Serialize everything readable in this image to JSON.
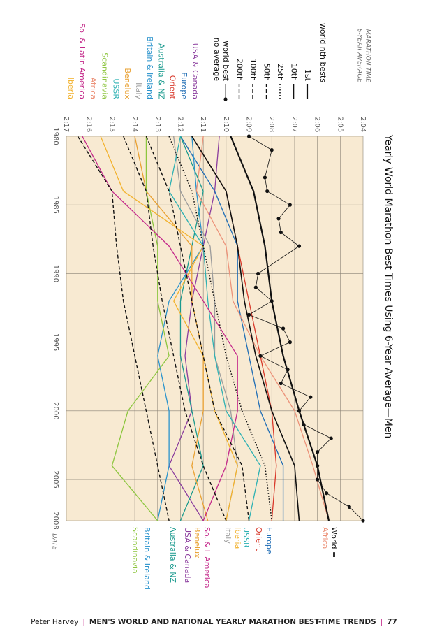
{
  "chart_data": {
    "type": "line",
    "title": "Yearly World Marathon Best Times Using 6-Year Average—Men",
    "y_label": [
      "MARATHON TIME",
      "6-YEAR AVERAGE"
    ],
    "x_label": "DATE",
    "xlim": [
      1980,
      2008
    ],
    "xticks": [
      1980,
      1985,
      1990,
      1995,
      2000,
      2005,
      2008
    ],
    "ylim": [
      124,
      137
    ],
    "yticks": [
      {
        "value": 124,
        "label": "2:04"
      },
      {
        "value": 125,
        "label": "2:05"
      },
      {
        "value": 126,
        "label": "2:06"
      },
      {
        "value": 127,
        "label": "2:07"
      },
      {
        "value": 128,
        "label": "2:08"
      },
      {
        "value": 129,
        "label": "2:09"
      },
      {
        "value": 130,
        "label": "2:10"
      },
      {
        "value": 131,
        "label": "2:11"
      },
      {
        "value": 132,
        "label": "2:12"
      },
      {
        "value": 133,
        "label": "2:13"
      },
      {
        "value": 134,
        "label": "2:14"
      },
      {
        "value": 135,
        "label": "2:15"
      },
      {
        "value": 136,
        "label": "2:16"
      },
      {
        "value": 137,
        "label": "2:17"
      }
    ],
    "grid": true,
    "background": "#f8ead2",
    "legend_title": "world nth bests",
    "x": [
      1980,
      1984,
      1988,
      1992,
      1996,
      2000,
      2004,
      2008
    ],
    "series": [
      {
        "name": "1st",
        "color": "#111111",
        "dash": "solid",
        "width": 2.2,
        "values": [
          129.8,
          128.8,
          128.3,
          128.0,
          127.5,
          126.8,
          126.0,
          125.5
        ]
      },
      {
        "name": "10th",
        "color": "#111111",
        "dash": "solid",
        "width": 1.6,
        "values": [
          131.5,
          130.0,
          129.5,
          129.2,
          128.7,
          128.0,
          127.0,
          126.8
        ]
      },
      {
        "name": "25th",
        "color": "#111111",
        "dash": "dotted",
        "width": 1.6,
        "values": [
          132.5,
          131.5,
          131.0,
          130.5,
          130.0,
          129.3,
          128.3,
          128.0
        ]
      },
      {
        "name": "50th",
        "color": "#111111",
        "dash": "dashed",
        "width": 1.4,
        "values": [
          133.5,
          132.5,
          132.0,
          131.5,
          131.0,
          130.5,
          129.3,
          129.0
        ]
      },
      {
        "name": "100th",
        "color": "#111111",
        "dash": "dashed",
        "width": 1.4,
        "values": [
          134.5,
          133.5,
          133.2,
          132.8,
          132.3,
          131.8,
          131.0,
          130.0
        ]
      },
      {
        "name": "200th",
        "color": "#111111",
        "dash": "dashed",
        "width": 1.4,
        "values": [
          136.5,
          135.0,
          134.8,
          134.5,
          134.0,
          133.5,
          133.0,
          132.5
        ]
      },
      {
        "name": "world best",
        "legend_note": "no average",
        "color": "#111111",
        "dash": "solid",
        "width": 0.8,
        "marker": true,
        "x": [
          1980,
          1981,
          1983,
          1984,
          1985,
          1986,
          1987,
          1988,
          1990,
          1991,
          1992,
          1993,
          1994,
          1995,
          1996,
          1997,
          1998,
          1999,
          2000,
          2001,
          2002,
          2003,
          2004,
          2005,
          2006,
          2007,
          2008
        ],
        "values": [
          129.0,
          128.0,
          128.3,
          128.2,
          127.2,
          127.7,
          127.6,
          126.8,
          128.6,
          128.7,
          128.0,
          129.0,
          127.5,
          127.2,
          128.5,
          127.3,
          127.6,
          126.3,
          126.8,
          126.6,
          125.4,
          126.0,
          126.0,
          126.0,
          125.6,
          124.6,
          124.0
        ]
      }
    ],
    "regions": [
      {
        "name": "USA & Canada",
        "color": "#8b3d9e",
        "values": [
          130.3,
          130.5,
          131.0,
          131.5,
          131.8,
          131.5,
          132.5,
          131.0
        ]
      },
      {
        "name": "Europe",
        "color": "#1f6db5",
        "values": [
          132.0,
          130.5,
          129.5,
          129.5,
          129.0,
          128.5,
          127.5,
          127.5
        ]
      },
      {
        "name": "Orient",
        "color": "#d8382a",
        "values": [
          131.5,
          130.0,
          129.5,
          129.0,
          128.5,
          128.0,
          127.8,
          128.0
        ]
      },
      {
        "name": "Australia & NZ",
        "color": "#1a9a8e",
        "values": [
          132.0,
          131.0,
          131.5,
          132.0,
          132.0,
          131.5,
          131.0,
          132.0
        ]
      },
      {
        "name": "Britain & Ireland",
        "color": "#2a93cc",
        "values": [
          131.5,
          131.3,
          131.0,
          132.5,
          133.0,
          132.5,
          132.5,
          133.0
        ]
      },
      {
        "name": "Italy",
        "color": "#9c9c9c",
        "values": [
          132.3,
          132.0,
          130.7,
          130.5,
          130.5,
          129.8,
          129.5,
          130.0
        ]
      },
      {
        "name": "Benelux",
        "color": "#e9a030",
        "values": [
          134.0,
          133.5,
          131.5,
          131.5,
          131.0,
          131.0,
          131.5,
          130.8
        ]
      },
      {
        "name": "USSR",
        "color": "#2db1b3",
        "values": [
          132.0,
          132.5,
          131.0,
          130.8,
          130.5,
          130.0,
          128.5,
          129.0
        ]
      },
      {
        "name": "Scandinavia",
        "color": "#8dc63f",
        "values": [
          133.5,
          133.5,
          133.0,
          133.0,
          132.5,
          134.3,
          135.0,
          133.0
        ]
      },
      {
        "name": "Africa",
        "color": "#ec9279",
        "values": [
          131.0,
          131.3,
          130.0,
          129.7,
          128.5,
          127.0,
          126.2,
          125.5
        ]
      },
      {
        "name": "So. & Latin America",
        "color": "#c4288a",
        "values": [
          136.3,
          135.0,
          132.5,
          131.0,
          129.5,
          129.5,
          130.0,
          131.0
        ]
      },
      {
        "name": "Iberia",
        "color": "#f2b22e",
        "values": [
          135.5,
          134.5,
          131.0,
          132.3,
          131.0,
          130.5,
          129.5,
          130.0
        ]
      }
    ],
    "end_labels": [
      {
        "text": "World =",
        "color": "#111111"
      },
      {
        "text": "Africa",
        "color": "#ec9279"
      },
      {
        "text": "Europe",
        "color": "#1f6db5"
      },
      {
        "text": "Orient",
        "color": "#d8382a"
      },
      {
        "text": "USSR",
        "color": "#2db1b3"
      },
      {
        "text": "Iberia",
        "color": "#f2b22e"
      },
      {
        "text": "Italy",
        "color": "#9c9c9c"
      },
      {
        "text": "So. & L America",
        "color": "#c4288a"
      },
      {
        "text": "Benelux",
        "color": "#e9a030"
      },
      {
        "text": "USA & Canada",
        "color": "#8b3d9e"
      },
      {
        "text": "Australia & NZ",
        "color": "#1a9a8e"
      },
      {
        "text": "Britain & Ireland",
        "color": "#2a93cc"
      },
      {
        "text": "Scandinavia",
        "color": "#8dc63f"
      }
    ]
  },
  "footer": {
    "author": "Peter Harvey",
    "title": "MEN'S WORLD AND NATIONAL YEARLY MARATHON BEST-TIME TRENDS",
    "page": "77"
  }
}
